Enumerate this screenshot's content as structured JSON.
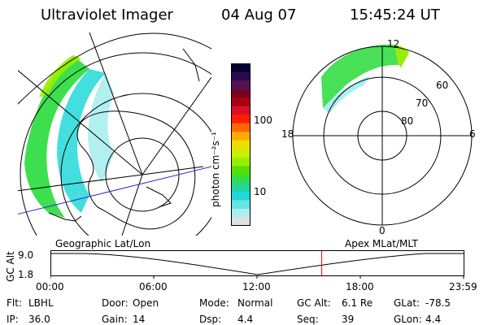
{
  "header": {
    "title": "Ultraviolet Imager",
    "date": "04 Aug 07",
    "time": "15:45:24 UT"
  },
  "colorbar": {
    "unit_label": "photon cm⁻²s⁻¹",
    "ticks": [
      "100",
      "10"
    ],
    "colors": [
      "#000033",
      "#2b0a4a",
      "#551155",
      "#7a0022",
      "#aa0011",
      "#d9102a",
      "#ff1e00",
      "#ff6600",
      "#ffaa00",
      "#eedd00",
      "#ccee00",
      "#99ee00",
      "#55e000",
      "#33dd44",
      "#22d4a0",
      "#22d8d8",
      "#66e3e3",
      "#aaeeee",
      "#e0e0e0"
    ]
  },
  "polar_plot": {
    "mlt_labels": [
      "12",
      "6",
      "0",
      "18"
    ],
    "lat_labels": [
      "60",
      "70",
      "80"
    ]
  },
  "timeline": {
    "left_label": "Geographic Lat/Lon",
    "right_label": "Apex  MLat/MLT",
    "y_label": "GC Alt",
    "y_ticks": [
      "9.0",
      "1.8"
    ],
    "x_ticks": [
      "00:00",
      "06:00",
      "12:00",
      "18:00",
      "23:59"
    ],
    "marker_time_hours": 15.76,
    "marker_color": "#ff0000"
  },
  "status": {
    "row1": [
      {
        "key": "Flt:",
        "value": "LBHL"
      },
      {
        "key": "Door:",
        "value": "Open"
      },
      {
        "key": "Mode:",
        "value": "Normal"
      },
      {
        "key": "GC Alt:",
        "value": "6.1 Re"
      },
      {
        "key": "GLat:",
        "value": "-78.5"
      }
    ],
    "row2": [
      {
        "key": "IP:",
        "value": "36.0"
      },
      {
        "key": "Gain:",
        "value": "14"
      },
      {
        "key": "Dsp:",
        "value": "4.4"
      },
      {
        "key": "Seq:",
        "value": "39"
      },
      {
        "key": "GLon:",
        "value": "4.4"
      }
    ]
  }
}
